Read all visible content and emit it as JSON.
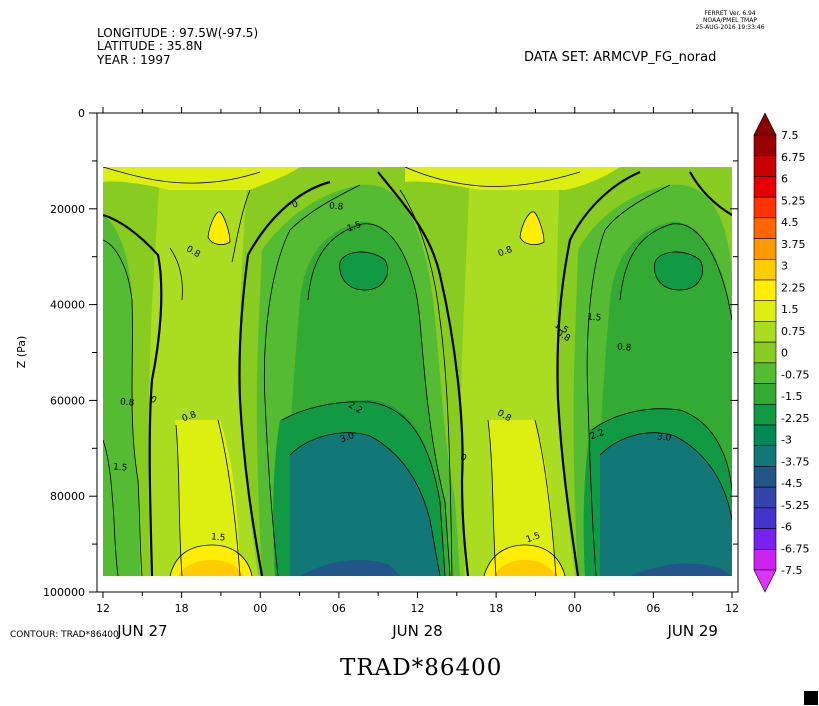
{
  "header": {
    "longitude": "LONGITUDE : 97.5W(-97.5)",
    "latitude": "LATITUDE : 35.8N",
    "year": "YEAR : 1997",
    "ferret_version": "FERRET Ver. 6.94",
    "ferret_org": "NOAA/PMEL TMAP",
    "ferret_date": "25-AUG-2016 19:33:46",
    "dataset": "DATA SET: ARMCVP_FG_norad"
  },
  "footer": {
    "contour_label": "CONTOUR: TRAD*86400",
    "variable_title": "TRAD*86400"
  },
  "chart_data": {
    "type": "heatmap",
    "title": "TRAD*86400",
    "xlabel": "",
    "ylabel": "Z (Pa)",
    "ylim": [
      100000,
      0
    ],
    "y_inverted": true,
    "y_ticks": [
      0,
      20000,
      40000,
      60000,
      80000,
      100000
    ],
    "y_tick_labels": [
      "0",
      "20000",
      "40000",
      "60000",
      "80000",
      "100000"
    ],
    "x_range_hours": [
      0,
      48
    ],
    "x_ticks": [
      {
        "t": 0,
        "label": "12"
      },
      {
        "t": 6,
        "label": "18"
      },
      {
        "t": 12,
        "label": "00"
      },
      {
        "t": 18,
        "label": "06"
      },
      {
        "t": 24,
        "label": "12"
      },
      {
        "t": 30,
        "label": "18"
      },
      {
        "t": 36,
        "label": "00"
      },
      {
        "t": 42,
        "label": "06"
      },
      {
        "t": 48,
        "label": "12"
      }
    ],
    "x_date_labels": [
      {
        "t": 3,
        "label": "JUN 27"
      },
      {
        "t": 24,
        "label": "JUN 28"
      },
      {
        "t": 45,
        "label": "JUN 29"
      }
    ],
    "data_extent": {
      "z_top": 12000,
      "z_bottom": 96000
    },
    "colorbar": {
      "levels": [
        "7.5",
        "6.75",
        "6",
        "5.25",
        "4.5",
        "3.75",
        "3",
        "2.25",
        "1.5",
        "0.75",
        "0",
        "-0.75",
        "-1.5",
        "-2.25",
        "-3",
        "-3.75",
        "-4.5",
        "-5.25",
        "-6",
        "-6.75",
        "-7.5"
      ],
      "colors": [
        "#990000",
        "#c80000",
        "#e60000",
        "#ff3300",
        "#ff6600",
        "#ff9900",
        "#ffcc00",
        "#ffee00",
        "#ddee11",
        "#aadd22",
        "#88cc22",
        "#55bb33",
        "#33aa33",
        "#119944",
        "#008855",
        "#117777",
        "#225588",
        "#3344aa",
        "#4433cc",
        "#7722ee",
        "#cc22ee"
      ],
      "top_arrow_color": "#8b0000",
      "bottom_arrow_color": "#dd33ff"
    },
    "contour_labels": [
      "0",
      "0.8",
      "0.8",
      "1.5",
      "0.8",
      "0",
      "0.8",
      "1.5",
      "2.2",
      "3.0",
      "1.5",
      "0",
      "0.8",
      "1.5",
      "0.8",
      "2.2",
      "3.0",
      "0.8",
      "1.5",
      "0.8",
      "1.5"
    ],
    "field_colors": {
      "yellow": "#ffee00",
      "light_yellow_green": "#ddee11",
      "yellow_green": "#aadd22",
      "light_green": "#88cc22",
      "green": "#55bb33",
      "mid_green": "#33aa33",
      "dark_green": "#119944",
      "teal": "#117777",
      "blue_teal": "#225588",
      "orange": "#ffcc00"
    }
  }
}
